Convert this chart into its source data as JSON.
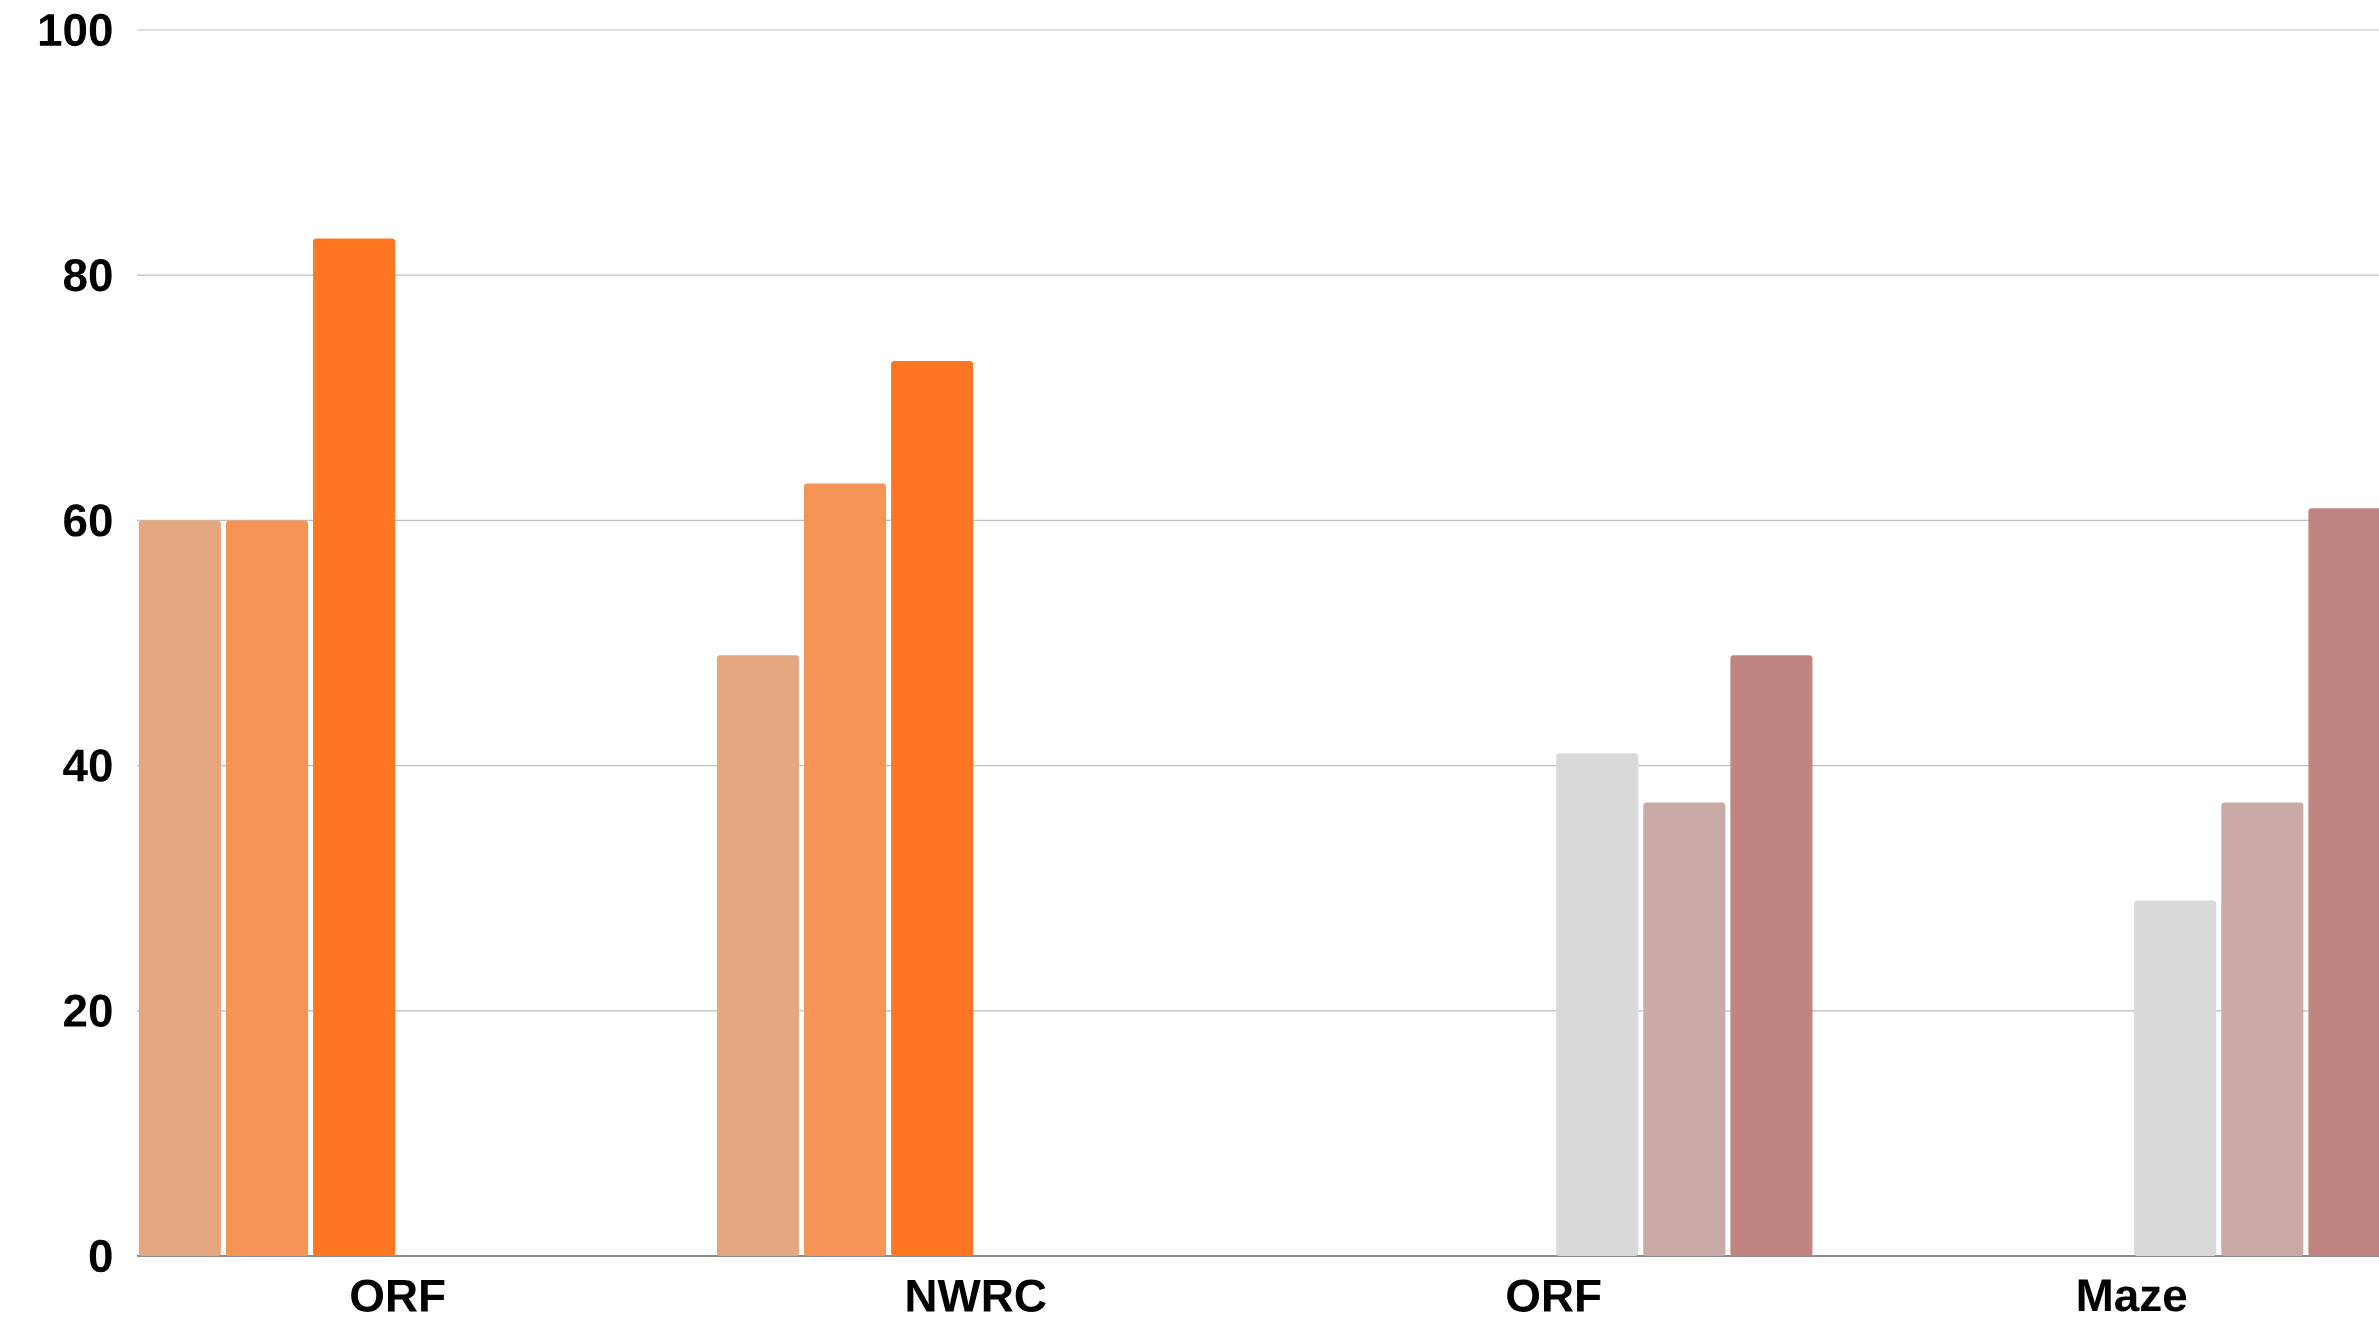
{
  "chart_data": {
    "type": "bar",
    "categories": [
      "ORF",
      "NWRC",
      "ORF",
      "Maze"
    ],
    "series": [
      {
        "color": "#e5a780",
        "values": [
          60,
          49,
          null,
          null
        ]
      },
      {
        "color": "#f59454",
        "values": [
          60,
          63,
          null,
          null
        ]
      },
      {
        "color": "#fe7621",
        "values": [
          83,
          73,
          null,
          null
        ]
      },
      {
        "color": "#d9d9d9",
        "values": [
          null,
          null,
          41,
          29
        ]
      },
      {
        "color": "#c9aaa7",
        "values": [
          null,
          null,
          37,
          37
        ]
      },
      {
        "color": "#c08481",
        "values": [
          null,
          null,
          49,
          61
        ]
      }
    ],
    "ylim": [
      0,
      100
    ],
    "yticks": [
      0,
      20,
      40,
      60,
      80,
      100
    ],
    "grid": "y"
  }
}
